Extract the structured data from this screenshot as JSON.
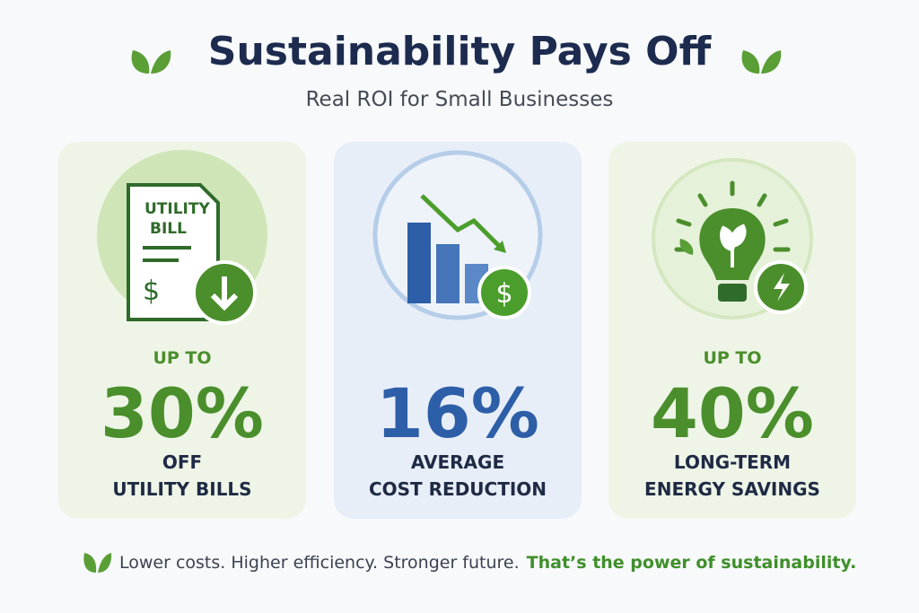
{
  "header": {
    "title": "Sustainability Pays Off",
    "subtitle": "Real ROI for Small Businesses"
  },
  "cards": [
    {
      "icon_text": [
        "UTILITY",
        "BILL",
        "$"
      ],
      "prefix": "UP TO",
      "value": "30%",
      "lines": [
        "OFF",
        "UTILITY BILLS"
      ]
    },
    {
      "icon_text": [
        "$"
      ],
      "value": "16%",
      "lines": [
        "AVERAGE",
        "COST REDUCTION"
      ]
    },
    {
      "prefix": "UP TO",
      "value": "40%",
      "lines": [
        "LONG-TERM",
        "ENERGY SAVINGS"
      ]
    }
  ],
  "footer": {
    "text": "Lower costs. Higher efficiency. Stronger future.",
    "highlight": "That’s the power of sustainability."
  }
}
